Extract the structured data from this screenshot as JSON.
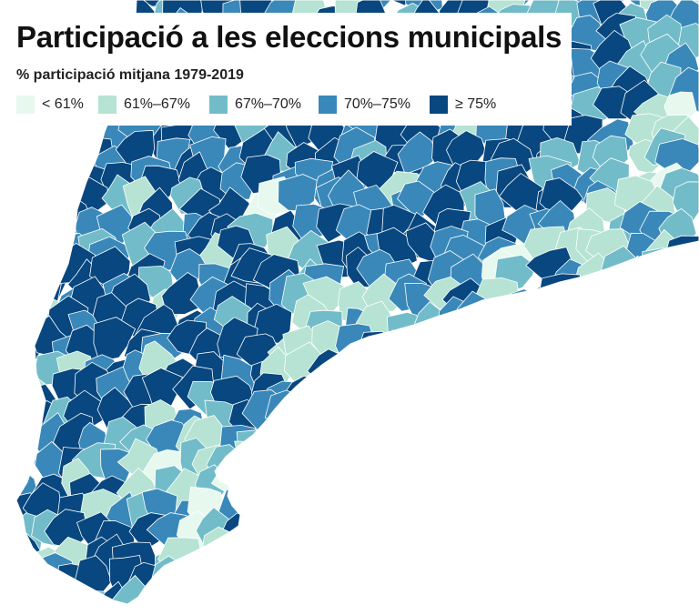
{
  "title": "Participació a les eleccions municipals",
  "subtitle": "% participació mitjana 1979-2019",
  "legend": [
    {
      "label": "< 61%",
      "color": "#e7f8ef"
    },
    {
      "label": "61%–67%",
      "color": "#b6e3d3"
    },
    {
      "label": "67%–70%",
      "color": "#72bcc9"
    },
    {
      "label": "70%–75%",
      "color": "#3988b9"
    },
    {
      "label": "≥ 75%",
      "color": "#08477f"
    }
  ],
  "map": {
    "type": "choropleth",
    "region_border_color": "#ffffff",
    "sea_color": "#ffffff"
  }
}
